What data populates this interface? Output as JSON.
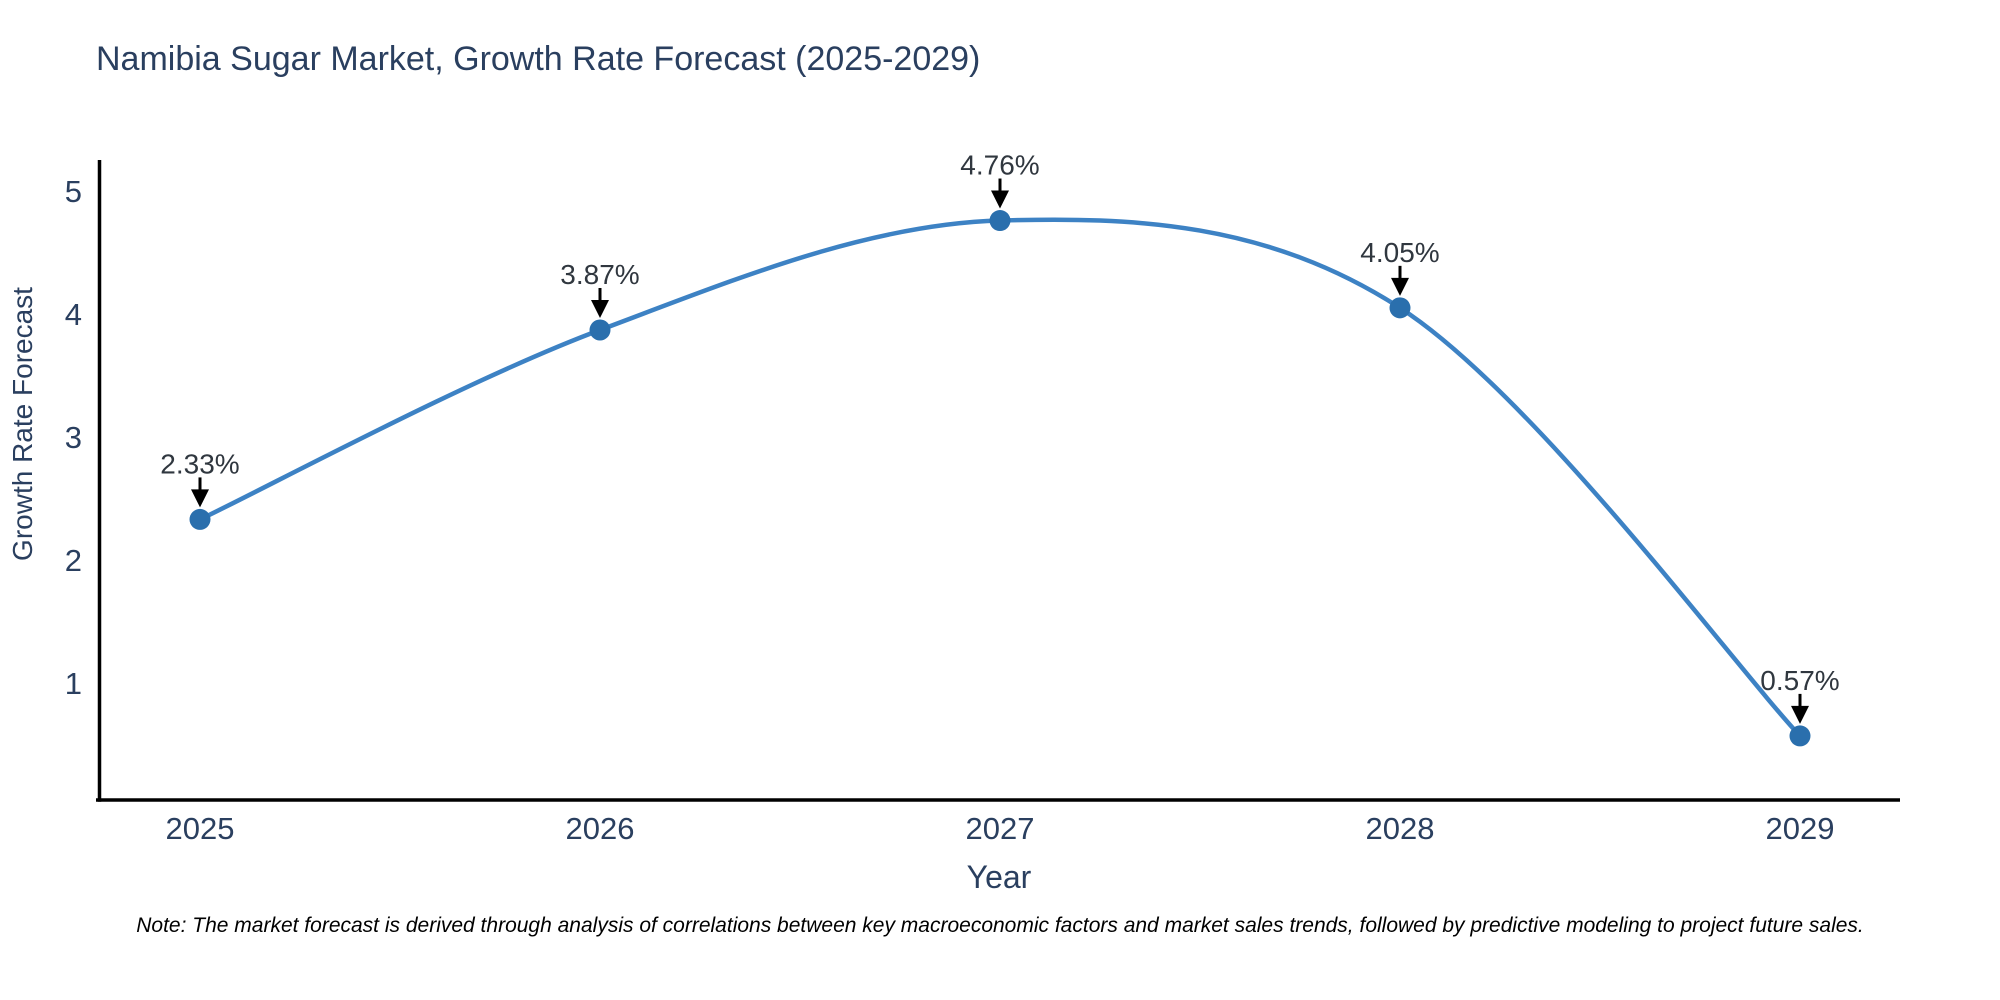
{
  "title": "Namibia Sugar Market, Growth Rate Forecast (2025-2029)",
  "note": "Note: The market forecast is derived through analysis of correlations between key macroeconomic factors and market sales trends, followed by predictive modeling to project future sales.",
  "chart_data": {
    "type": "line",
    "line_shape": "spline",
    "title": "Namibia Sugar Market, Growth Rate Forecast (2025-2029)",
    "xlabel": "Year",
    "ylabel": "Growth Rate Forecast",
    "x": [
      "2025",
      "2026",
      "2027",
      "2028",
      "2029"
    ],
    "values": [
      2.33,
      3.87,
      4.76,
      4.05,
      0.57
    ],
    "point_labels": [
      "2.33%",
      "3.87%",
      "4.76%",
      "4.05%",
      "0.57%"
    ],
    "yticks": [
      1,
      2,
      3,
      4,
      5
    ],
    "ylim": [
      0.05,
      5.25
    ],
    "grid": false,
    "legend": "none",
    "markers": true,
    "annotations_have_arrows": true,
    "colors": {
      "line": "#3d82c4",
      "marker": "#2a6fad",
      "axis": "#000000",
      "arrow": "#000000",
      "axis_text": "#2a3f5f",
      "annotation_text": "#30373f",
      "title_text": "#2a3f5f",
      "background": "#ffffff"
    }
  }
}
